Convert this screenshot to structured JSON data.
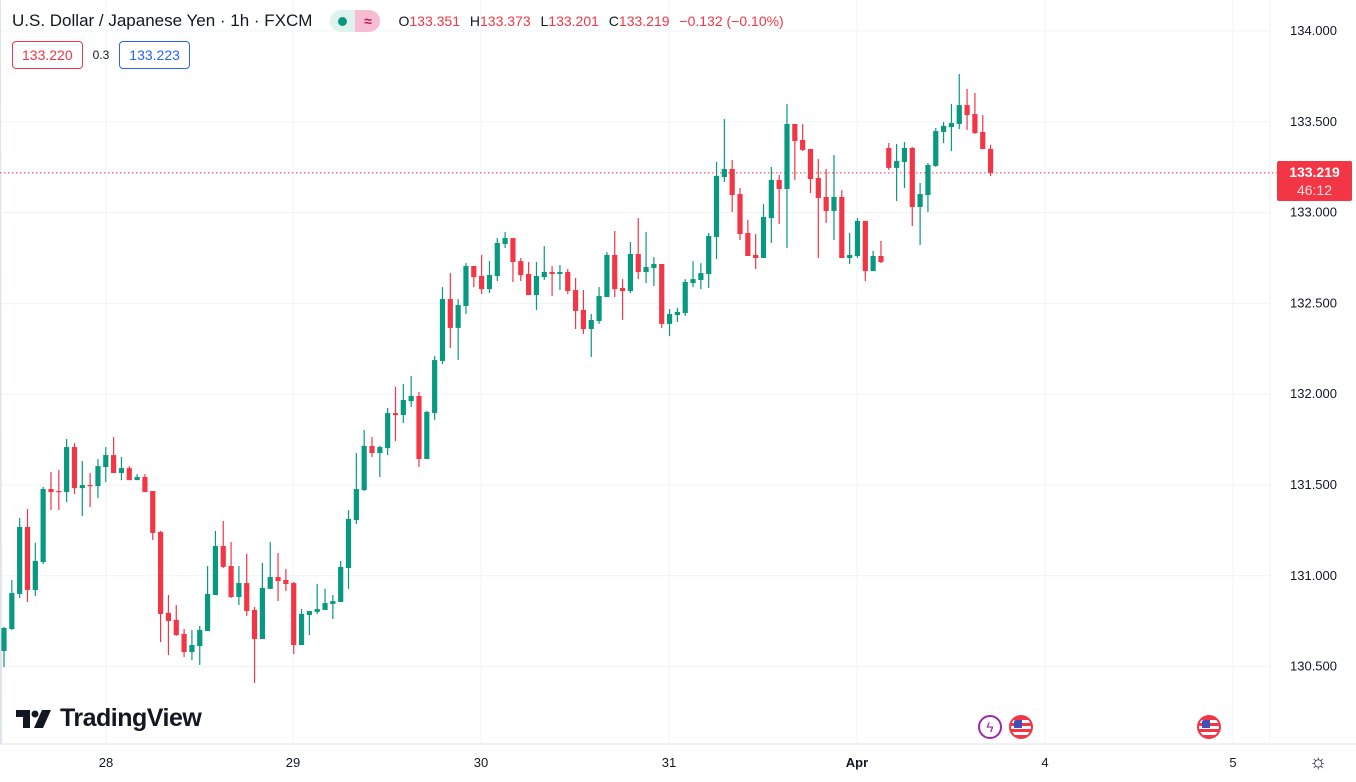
{
  "header": {
    "title": "U.S. Dollar / Japanese Yen · 1h · FXCM",
    "wave_icon": "≈",
    "ohlc": {
      "o_label": "O",
      "o": "133.351",
      "h_label": "H",
      "h": "133.373",
      "l_label": "L",
      "l": "133.201",
      "c_label": "C",
      "c": "133.219",
      "change": "−0.132 (−0.10%)"
    }
  },
  "trade": {
    "sell_price": "133.220",
    "spread": "0.3",
    "buy_price": "133.223"
  },
  "last_price": {
    "price": "133.219",
    "countdown": "46:12"
  },
  "logo": "TradingView",
  "events": [
    "lightning-icon",
    "us-flag-icon",
    "us-flag-icon"
  ],
  "colors": {
    "up": "#089981",
    "down": "#F23645",
    "grid": "#F0F3FA",
    "buy": "#2962FF"
  },
  "chart_data": {
    "type": "candlestick",
    "title": "U.S. Dollar / Japanese Yen · 1h · FXCM",
    "interval": "1h",
    "ylim": [
      130.2,
      134.05
    ],
    "y_ticks": [
      "134.000",
      "133.500",
      "133.000",
      "132.500",
      "132.000",
      "131.500",
      "131.000",
      "130.500"
    ],
    "x_ticks": [
      "28",
      "29",
      "30",
      "31",
      "Apr",
      "4",
      "5"
    ],
    "grid": true,
    "candles_ohlc": [
      [
        130.586,
        130.718,
        130.497,
        130.713
      ],
      [
        130.707,
        130.977,
        130.702,
        130.905
      ],
      [
        130.9,
        131.318,
        130.878,
        131.269
      ],
      [
        131.269,
        131.368,
        130.856,
        130.922
      ],
      [
        130.922,
        131.181,
        130.889,
        131.082
      ],
      [
        131.076,
        131.489,
        131.065,
        131.478
      ],
      [
        131.478,
        131.572,
        131.362,
        131.461
      ],
      [
        131.467,
        131.583,
        131.362,
        131.461
      ],
      [
        131.461,
        131.753,
        131.406,
        131.709
      ],
      [
        131.709,
        131.731,
        131.45,
        131.483
      ],
      [
        131.483,
        131.632,
        131.329,
        131.5
      ],
      [
        131.5,
        131.566,
        131.379,
        131.494
      ],
      [
        131.494,
        131.643,
        131.428,
        131.604
      ],
      [
        131.599,
        131.709,
        131.516,
        131.665
      ],
      [
        131.665,
        131.764,
        131.566,
        131.566
      ],
      [
        131.566,
        131.654,
        131.527,
        131.593
      ],
      [
        131.593,
        131.604,
        131.527,
        131.527
      ],
      [
        131.527,
        131.56,
        131.527,
        131.544
      ],
      [
        131.544,
        131.56,
        131.461,
        131.461
      ],
      [
        131.467,
        131.467,
        131.197,
        131.236
      ],
      [
        131.241,
        131.247,
        130.635,
        130.79
      ],
      [
        130.796,
        130.894,
        130.564,
        130.751
      ],
      [
        130.757,
        130.839,
        130.669,
        130.674
      ],
      [
        130.68,
        130.707,
        130.553,
        130.58
      ],
      [
        130.58,
        130.702,
        130.536,
        130.619
      ],
      [
        130.613,
        130.724,
        130.509,
        130.702
      ],
      [
        130.696,
        131.054,
        130.696,
        130.9
      ],
      [
        130.894,
        131.247,
        130.894,
        131.164
      ],
      [
        131.164,
        131.302,
        131.043,
        131.049
      ],
      [
        131.054,
        131.186,
        130.878,
        130.883
      ],
      [
        130.883,
        131.054,
        130.839,
        130.96
      ],
      [
        130.96,
        131.12,
        130.779,
        130.806
      ],
      [
        130.812,
        130.828,
        130.41,
        130.652
      ],
      [
        130.652,
        131.071,
        130.652,
        130.933
      ],
      [
        130.928,
        131.186,
        130.928,
        130.993
      ],
      [
        130.993,
        131.125,
        130.861,
        130.971
      ],
      [
        130.977,
        131.038,
        130.916,
        130.955
      ],
      [
        130.96,
        130.966,
        130.569,
        130.619
      ],
      [
        130.619,
        130.817,
        130.619,
        130.79
      ],
      [
        130.784,
        130.806,
        130.674,
        130.806
      ],
      [
        130.801,
        130.955,
        130.79,
        130.817
      ],
      [
        130.812,
        130.928,
        130.812,
        130.85
      ],
      [
        130.845,
        130.894,
        130.762,
        130.861
      ],
      [
        130.856,
        131.082,
        130.856,
        131.049
      ],
      [
        131.043,
        131.362,
        130.928,
        131.313
      ],
      [
        131.307,
        131.676,
        131.285,
        131.478
      ],
      [
        131.472,
        131.803,
        131.467,
        131.715
      ],
      [
        131.715,
        131.764,
        131.654,
        131.676
      ],
      [
        131.676,
        131.715,
        131.544,
        131.709
      ],
      [
        131.704,
        131.924,
        131.665,
        131.896
      ],
      [
        131.896,
        132.04,
        131.742,
        131.885
      ],
      [
        131.885,
        132.056,
        131.841,
        131.968
      ],
      [
        131.962,
        132.1,
        131.93,
        131.99
      ],
      [
        131.99,
        132.012,
        131.599,
        131.643
      ],
      [
        131.643,
        131.908,
        131.643,
        131.902
      ],
      [
        131.896,
        132.21,
        131.858,
        132.188
      ],
      [
        132.183,
        132.59,
        132.166,
        132.524
      ],
      [
        132.524,
        132.667,
        132.254,
        132.365
      ],
      [
        132.365,
        132.524,
        132.188,
        132.491
      ],
      [
        132.486,
        132.722,
        132.442,
        132.706
      ],
      [
        132.706,
        132.706,
        132.59,
        132.645
      ],
      [
        132.651,
        132.767,
        132.552,
        132.579
      ],
      [
        132.579,
        132.733,
        132.557,
        132.656
      ],
      [
        132.651,
        132.86,
        132.623,
        132.833
      ],
      [
        132.827,
        132.893,
        132.805,
        132.86
      ],
      [
        132.86,
        132.86,
        132.618,
        132.728
      ],
      [
        132.733,
        132.75,
        132.623,
        132.656
      ],
      [
        132.662,
        132.728,
        132.546,
        132.546
      ],
      [
        132.546,
        132.728,
        132.464,
        132.651
      ],
      [
        132.645,
        132.816,
        132.629,
        132.673
      ],
      [
        132.673,
        132.706,
        132.541,
        132.662
      ],
      [
        132.662,
        132.711,
        132.574,
        132.673
      ],
      [
        132.673,
        132.689,
        132.552,
        132.568
      ],
      [
        132.574,
        132.64,
        132.359,
        132.458
      ],
      [
        132.464,
        132.574,
        132.332,
        132.359
      ],
      [
        132.359,
        132.442,
        132.205,
        132.409
      ],
      [
        132.403,
        132.59,
        132.387,
        132.541
      ],
      [
        132.535,
        132.783,
        132.535,
        132.767
      ],
      [
        132.767,
        132.899,
        132.535,
        132.579
      ],
      [
        132.585,
        132.634,
        132.409,
        132.568
      ],
      [
        132.568,
        132.838,
        132.557,
        132.772
      ],
      [
        132.772,
        132.97,
        132.634,
        132.673
      ],
      [
        132.673,
        132.893,
        132.612,
        132.7
      ],
      [
        132.695,
        132.755,
        132.596,
        132.717
      ],
      [
        132.717,
        132.717,
        132.365,
        132.387
      ],
      [
        132.387,
        132.469,
        132.32,
        132.442
      ],
      [
        132.436,
        132.475,
        132.398,
        132.453
      ],
      [
        132.447,
        132.634,
        132.431,
        132.618
      ],
      [
        132.612,
        132.733,
        132.59,
        132.634
      ],
      [
        132.629,
        132.722,
        132.579,
        132.667
      ],
      [
        132.662,
        132.888,
        132.585,
        132.871
      ],
      [
        132.866,
        133.279,
        132.744,
        133.202
      ],
      [
        133.196,
        133.515,
        133.169,
        133.24
      ],
      [
        133.24,
        133.29,
        133.003,
        133.097
      ],
      [
        133.102,
        133.135,
        132.849,
        132.882
      ],
      [
        132.888,
        132.959,
        132.761,
        132.761
      ],
      [
        132.767,
        132.882,
        132.689,
        132.75
      ],
      [
        132.75,
        133.047,
        132.75,
        132.976
      ],
      [
        132.97,
        133.251,
        132.833,
        133.18
      ],
      [
        133.18,
        133.207,
        132.937,
        133.13
      ],
      [
        133.13,
        133.598,
        132.805,
        133.488
      ],
      [
        133.488,
        133.488,
        133.18,
        133.394
      ],
      [
        133.4,
        133.488,
        133.339,
        133.345
      ],
      [
        133.35,
        133.35,
        133.108,
        133.185
      ],
      [
        133.191,
        133.295,
        132.75,
        133.08
      ],
      [
        133.086,
        133.24,
        132.943,
        133.009
      ],
      [
        133.009,
        133.317,
        132.849,
        133.086
      ],
      [
        133.086,
        133.124,
        132.75,
        132.75
      ],
      [
        132.75,
        132.888,
        132.717,
        132.767
      ],
      [
        132.761,
        132.97,
        132.75,
        132.954
      ],
      [
        132.954,
        132.954,
        132.623,
        132.678
      ],
      [
        132.678,
        132.789,
        132.678,
        132.761
      ],
      [
        132.761,
        132.844,
        132.722,
        132.728
      ],
      [
        133.356,
        133.383,
        133.235,
        133.246
      ],
      [
        133.246,
        133.378,
        133.064,
        133.284
      ],
      [
        133.279,
        133.389,
        133.135,
        133.356
      ],
      [
        133.356,
        133.361,
        132.926,
        133.031
      ],
      [
        133.031,
        133.163,
        132.822,
        133.102
      ],
      [
        133.097,
        133.273,
        133.003,
        133.262
      ],
      [
        133.257,
        133.466,
        133.251,
        133.449
      ],
      [
        133.444,
        133.499,
        133.383,
        133.477
      ],
      [
        133.471,
        133.598,
        133.339,
        133.493
      ],
      [
        133.488,
        133.763,
        133.46,
        133.592
      ],
      [
        133.592,
        133.681,
        133.455,
        133.537
      ],
      [
        133.543,
        133.659,
        133.433,
        133.438
      ],
      [
        133.444,
        133.537,
        133.35,
        133.35
      ],
      [
        133.351,
        133.373,
        133.201,
        133.219
      ]
    ],
    "last_price": 133.219
  }
}
